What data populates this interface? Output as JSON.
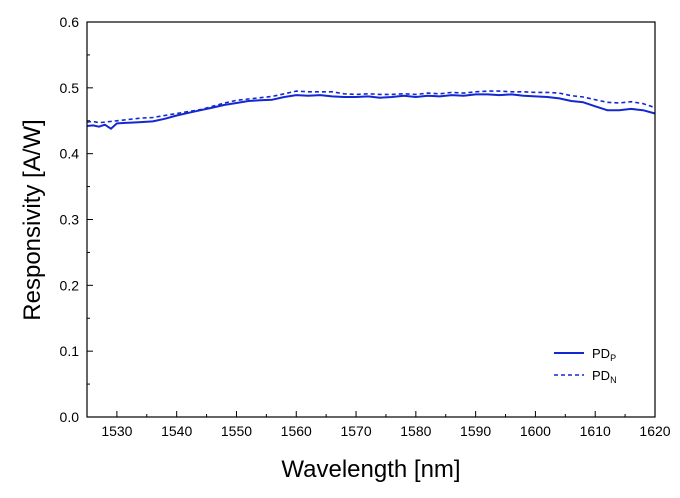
{
  "chart_data": {
    "type": "line",
    "xlabel": "Wavelength  [nm]",
    "ylabel": "Responsivity  [A/W]",
    "xlim": [
      1525,
      1620
    ],
    "ylim": [
      0.0,
      0.6
    ],
    "xticks": [
      1530,
      1540,
      1550,
      1560,
      1570,
      1580,
      1590,
      1600,
      1610,
      1620
    ],
    "yticks": [
      "0.0",
      "0.1",
      "0.2",
      "0.3",
      "0.4",
      "0.5",
      "0.6"
    ],
    "grid": false,
    "legend_position": "bottom-right",
    "series": [
      {
        "name_main": "PD",
        "name_sub": "P",
        "style": "solid",
        "color": "#1428d2",
        "x": [
          1525,
          1526,
          1527,
          1528,
          1529,
          1530,
          1532,
          1534,
          1536,
          1538,
          1540,
          1542,
          1544,
          1546,
          1548,
          1550,
          1552,
          1554,
          1556,
          1558,
          1560,
          1562,
          1564,
          1566,
          1568,
          1570,
          1572,
          1574,
          1576,
          1578,
          1580,
          1582,
          1584,
          1586,
          1588,
          1590,
          1592,
          1594,
          1596,
          1598,
          1600,
          1602,
          1604,
          1606,
          1608,
          1610,
          1612,
          1614,
          1616,
          1618,
          1620
        ],
        "y": [
          0.442,
          0.443,
          0.441,
          0.444,
          0.438,
          0.446,
          0.447,
          0.448,
          0.449,
          0.453,
          0.458,
          0.462,
          0.466,
          0.47,
          0.474,
          0.477,
          0.48,
          0.481,
          0.482,
          0.486,
          0.489,
          0.488,
          0.489,
          0.487,
          0.486,
          0.486,
          0.487,
          0.485,
          0.486,
          0.488,
          0.486,
          0.488,
          0.487,
          0.489,
          0.488,
          0.49,
          0.49,
          0.489,
          0.49,
          0.488,
          0.487,
          0.486,
          0.484,
          0.48,
          0.478,
          0.472,
          0.466,
          0.466,
          0.468,
          0.466,
          0.461
        ]
      },
      {
        "name_main": "PD",
        "name_sub": "N",
        "style": "dashed",
        "color": "#1428d2",
        "x": [
          1525,
          1526,
          1527,
          1528,
          1529,
          1530,
          1532,
          1534,
          1536,
          1538,
          1540,
          1542,
          1544,
          1546,
          1548,
          1550,
          1552,
          1554,
          1556,
          1558,
          1560,
          1562,
          1564,
          1566,
          1568,
          1570,
          1572,
          1574,
          1576,
          1578,
          1580,
          1582,
          1584,
          1586,
          1588,
          1590,
          1592,
          1594,
          1596,
          1598,
          1600,
          1602,
          1604,
          1606,
          1608,
          1610,
          1612,
          1614,
          1616,
          1618,
          1620
        ],
        "y": [
          0.448,
          0.449,
          0.447,
          0.448,
          0.449,
          0.45,
          0.452,
          0.454,
          0.455,
          0.458,
          0.461,
          0.464,
          0.467,
          0.472,
          0.477,
          0.481,
          0.483,
          0.485,
          0.487,
          0.491,
          0.495,
          0.494,
          0.494,
          0.494,
          0.491,
          0.49,
          0.491,
          0.49,
          0.49,
          0.491,
          0.49,
          0.492,
          0.491,
          0.493,
          0.492,
          0.494,
          0.495,
          0.495,
          0.494,
          0.494,
          0.493,
          0.493,
          0.492,
          0.488,
          0.486,
          0.482,
          0.478,
          0.477,
          0.479,
          0.476,
          0.47
        ]
      }
    ]
  }
}
